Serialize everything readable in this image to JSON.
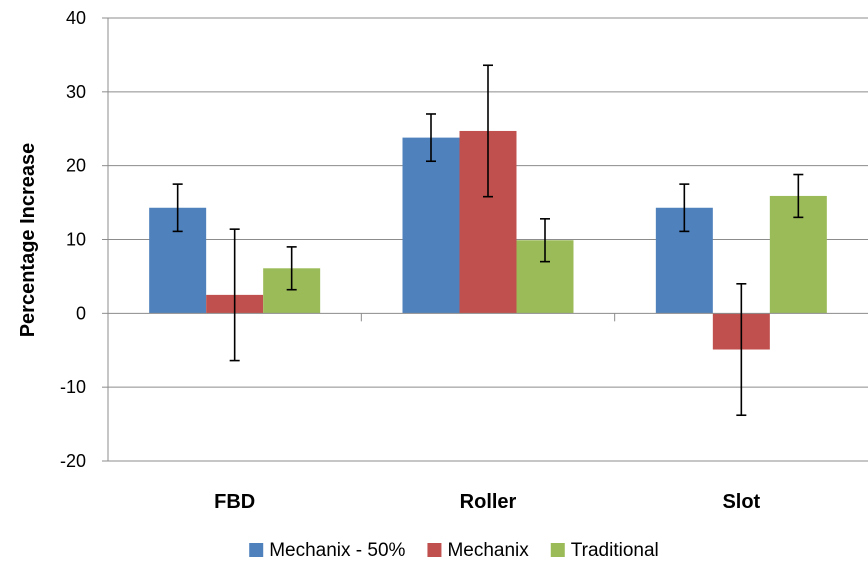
{
  "chart_data": {
    "type": "bar",
    "title": "",
    "xlabel": "",
    "ylabel": "Percentage Increase",
    "categories": [
      "FBD",
      "Roller",
      "Slot"
    ],
    "ylim": [
      -20,
      40
    ],
    "yticks": [
      -20,
      -10,
      0,
      10,
      20,
      30,
      40
    ],
    "grid": true,
    "legend_position": "bottom",
    "series": [
      {
        "name": "Mechanix - 50%",
        "color": "#4F81BD",
        "values": [
          14.3,
          23.8,
          14.3
        ],
        "errors": [
          3.2,
          3.2,
          3.2
        ]
      },
      {
        "name": "Mechanix",
        "color": "#C0504D",
        "values": [
          2.5,
          24.7,
          -4.9
        ],
        "errors": [
          8.9,
          8.9,
          8.9
        ]
      },
      {
        "name": "Traditional",
        "color": "#9BBB59",
        "values": [
          6.1,
          9.9,
          15.9
        ],
        "errors": [
          2.9,
          2.9,
          2.9
        ]
      }
    ]
  }
}
